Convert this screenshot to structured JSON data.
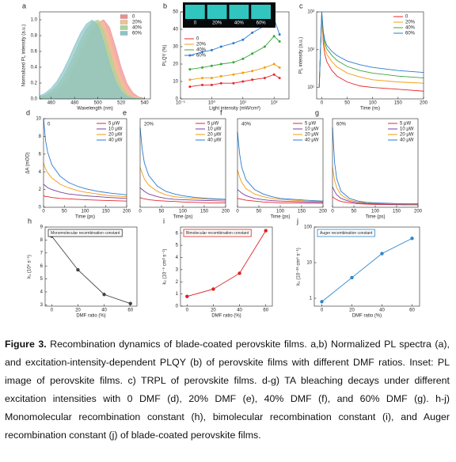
{
  "chart_data": [
    {
      "panel": "a",
      "type": "area",
      "xlabel": "Wavelength (nm)",
      "ylabel": "Normalized PL intensity (a.u.)",
      "xlim": [
        450,
        545
      ],
      "ylim": [
        0,
        1.1
      ],
      "xticks": [
        460,
        480,
        500,
        520,
        540
      ],
      "yticks": [
        {
          "value": 0,
          "label": "0.0"
        },
        0.2,
        0.4,
        0.6,
        0.8,
        {
          "value": 1,
          "label": "1.0"
        }
      ],
      "legend": "upper right",
      "x": [
        450,
        455,
        460,
        465,
        470,
        475,
        480,
        485,
        490,
        495,
        500,
        505,
        510,
        515,
        520,
        525,
        530,
        535,
        540
      ],
      "series": [
        {
          "name": "0",
          "color": "#f08c8c",
          "values": [
            0.009,
            0.021,
            0.044,
            0.085,
            0.151,
            0.249,
            0.381,
            0.539,
            0.707,
            0.857,
            0.962,
            1,
            0.902,
            0.662,
            0.395,
            0.192,
            0.076,
            0.024,
            0.006
          ]
        },
        {
          "name": "20%",
          "color": "#f4c08f",
          "values": [
            0.015,
            0.033,
            0.066,
            0.121,
            0.206,
            0.325,
            0.474,
            0.64,
            0.801,
            0.927,
            0.994,
            0.964,
            0.768,
            0.498,
            0.262,
            0.112,
            0.039,
            0.011,
            0.003
          ]
        },
        {
          "name": "40%",
          "color": "#a9d69a",
          "values": [
            0.025,
            0.05,
            0.096,
            0.168,
            0.273,
            0.411,
            0.573,
            0.739,
            0.882,
            0.975,
            0.996,
            0.862,
            0.607,
            0.347,
            0.162,
            0.061,
            0.019,
            0.005,
            0.001
          ]
        },
        {
          "name": "60%",
          "color": "#8cc3c7",
          "values": [
            0.038,
            0.075,
            0.135,
            0.227,
            0.353,
            0.506,
            0.674,
            0.83,
            0.946,
            0.998,
            0.936,
            0.716,
            0.445,
            0.225,
            0.093,
            0.031,
            0.008,
            0.002,
            0
          ]
        }
      ]
    },
    {
      "panel": "b",
      "type": "line",
      "markers": true,
      "xlog": true,
      "xlabel": "Light intensity (mW/cm²)",
      "ylabel": "PLQY (%)",
      "xlim": [
        0.1,
        300
      ],
      "ylim": [
        0,
        50
      ],
      "xticks": [
        {
          "value": 0.1,
          "label": "10⁻¹"
        },
        {
          "value": 1,
          "label": "10⁰"
        },
        {
          "value": 10,
          "label": "10¹"
        },
        {
          "value": 100,
          "label": "10²"
        }
      ],
      "yticks": [
        0,
        10,
        20,
        30,
        40,
        50
      ],
      "legend": "upper left",
      "inset_labels": [
        "0",
        "20%",
        "40%",
        "60%"
      ],
      "x": [
        0.2,
        0.5,
        1,
        2,
        5,
        10,
        20,
        50,
        100,
        150
      ],
      "series": [
        {
          "name": "0",
          "color": "#e8262b",
          "values": [
            7,
            8,
            8,
            9,
            9,
            10,
            11,
            12,
            14,
            12
          ]
        },
        {
          "name": "20%",
          "color": "#f39c12",
          "values": [
            11,
            12,
            12,
            13,
            14,
            15,
            16,
            18,
            20,
            18
          ]
        },
        {
          "name": "40%",
          "color": "#3aa53a",
          "values": [
            17,
            18,
            19,
            20,
            21,
            23,
            26,
            30,
            36,
            33
          ]
        },
        {
          "name": "60%",
          "color": "#2b7bd0",
          "values": [
            25,
            27,
            28,
            30,
            32,
            34,
            38,
            42,
            46,
            37
          ]
        }
      ]
    },
    {
      "panel": "c",
      "type": "line",
      "ylog": true,
      "xlabel": "Time (ns)",
      "ylabel": "PL intensity (a.u.)",
      "xlim": [
        -10,
        200
      ],
      "ylim": [
        5,
        1000
      ],
      "xticks": [
        0,
        50,
        100,
        150,
        200
      ],
      "yticks": [
        {
          "value": 10,
          "label": "10¹"
        },
        {
          "value": 100,
          "label": "10²"
        },
        {
          "value": 1000,
          "label": "10³"
        }
      ],
      "legend": "upper right",
      "x": [
        -5,
        0,
        3,
        6,
        10,
        20,
        30,
        50,
        75,
        100,
        150,
        200
      ],
      "series": [
        {
          "name": "0",
          "color": "#e8262b",
          "values": [
            10,
            850,
            150,
            75,
            48,
            28,
            20,
            14,
            11,
            10,
            9,
            8
          ]
        },
        {
          "name": "20%",
          "color": "#f39c12",
          "values": [
            10,
            900,
            200,
            110,
            75,
            48,
            35,
            24,
            19,
            16,
            14,
            13
          ]
        },
        {
          "name": "40%",
          "color": "#3aa53a",
          "values": [
            10,
            950,
            250,
            150,
            105,
            70,
            52,
            36,
            28,
            24,
            20,
            18
          ]
        },
        {
          "name": "60%",
          "color": "#2b7bd0",
          "values": [
            10,
            1000,
            300,
            180,
            130,
            90,
            70,
            50,
            40,
            34,
            28,
            25
          ]
        }
      ]
    },
    {
      "panel": "d",
      "tag": "0",
      "type": "line",
      "xlabel": "Time (ps)",
      "ylabel": "ΔA (mOD)",
      "xlim": [
        0,
        200
      ],
      "ylim": [
        0,
        10
      ],
      "xticks": [
        0,
        50,
        100,
        150,
        200
      ],
      "yticks": [
        0,
        2,
        4,
        6,
        8,
        10
      ],
      "legend": "upper right",
      "x": [
        0,
        5,
        10,
        20,
        40,
        60,
        80,
        100,
        130,
        160,
        200
      ],
      "series": [
        {
          "name": "5 μW",
          "color": "#e8262b",
          "values": [
            1.3,
            1.2,
            1.2,
            1.1,
            1,
            0.95,
            0.9,
            0.85,
            0.8,
            0.75,
            0.7
          ]
        },
        {
          "name": "10 μW",
          "color": "#7a3fa0",
          "values": [
            2.6,
            2.4,
            2.2,
            2,
            1.7,
            1.5,
            1.4,
            1.3,
            1.2,
            1.1,
            1
          ]
        },
        {
          "name": "20 μW",
          "color": "#f39c12",
          "values": [
            5,
            4.3,
            3.9,
            3.3,
            2.6,
            2.2,
            1.9,
            1.7,
            1.5,
            1.3,
            1.2
          ]
        },
        {
          "name": "40 μW",
          "color": "#2b7bd0",
          "values": [
            10,
            7.5,
            6.2,
            4.8,
            3.5,
            2.8,
            2.4,
            2.1,
            1.8,
            1.6,
            1.4
          ]
        }
      ]
    },
    {
      "panel": "e",
      "tag": "20%",
      "type": "line",
      "xlabel": "Time (ps)",
      "xlim": [
        0,
        200
      ],
      "ylim": [
        0,
        10
      ],
      "xticks": [
        0,
        50,
        100,
        150,
        200
      ],
      "legend": "upper right",
      "x": [
        0,
        5,
        10,
        20,
        40,
        60,
        80,
        100,
        130,
        160,
        200
      ],
      "series": [
        {
          "name": "5 μW",
          "color": "#e8262b",
          "values": [
            1.1,
            1,
            0.95,
            0.85,
            0.75,
            0.7,
            0.65,
            0.6,
            0.55,
            0.5,
            0.5
          ]
        },
        {
          "name": "10 μW",
          "color": "#7a3fa0",
          "values": [
            2.2,
            2,
            1.8,
            1.5,
            1.2,
            1,
            0.9,
            0.85,
            0.8,
            0.75,
            0.7
          ]
        },
        {
          "name": "20 μW",
          "color": "#f39c12",
          "values": [
            4.5,
            3.8,
            3.2,
            2.5,
            1.8,
            1.4,
            1.2,
            1.1,
            1,
            0.9,
            0.85
          ]
        },
        {
          "name": "40 μW",
          "color": "#2b7bd0",
          "values": [
            9,
            6.5,
            5,
            3.6,
            2.4,
            1.8,
            1.5,
            1.3,
            1.1,
            1,
            0.9
          ]
        }
      ]
    },
    {
      "panel": "f",
      "tag": "40%",
      "type": "line",
      "xlabel": "Time (ps)",
      "xlim": [
        0,
        200
      ],
      "ylim": [
        0,
        10
      ],
      "xticks": [
        0,
        50,
        100,
        150,
        200
      ],
      "legend": "upper right",
      "x": [
        0,
        5,
        10,
        20,
        40,
        60,
        80,
        100,
        130,
        160,
        200
      ],
      "series": [
        {
          "name": "5 μW",
          "color": "#e8262b",
          "values": [
            1,
            0.95,
            0.9,
            0.8,
            0.7,
            0.6,
            0.55,
            0.5,
            0.5,
            0.45,
            0.45
          ]
        },
        {
          "name": "10 μW",
          "color": "#7a3fa0",
          "values": [
            2,
            1.8,
            1.6,
            1.3,
            1,
            0.85,
            0.75,
            0.7,
            0.65,
            0.6,
            0.55
          ]
        },
        {
          "name": "20 μW",
          "color": "#f39c12",
          "values": [
            4.2,
            3.4,
            2.8,
            2.1,
            1.5,
            1.2,
            1,
            0.9,
            0.8,
            0.7,
            0.65
          ]
        },
        {
          "name": "40 μW",
          "color": "#2b7bd0",
          "values": [
            8.5,
            6,
            4.5,
            3.1,
            2,
            1.5,
            1.2,
            1,
            0.9,
            0.8,
            0.7
          ]
        }
      ]
    },
    {
      "panel": "g",
      "tag": "60%",
      "type": "line",
      "xlabel": "Time (ps)",
      "xlim": [
        0,
        200
      ],
      "ylim": [
        0,
        10
      ],
      "xticks": [
        0,
        50,
        100,
        150,
        200
      ],
      "legend": "upper right",
      "x": [
        0,
        5,
        10,
        20,
        40,
        60,
        80,
        100,
        130,
        160,
        200
      ],
      "series": [
        {
          "name": "5 μW",
          "color": "#e8262b",
          "values": [
            1.2,
            1,
            0.85,
            0.65,
            0.5,
            0.4,
            0.35,
            0.32,
            0.3,
            0.28,
            0.27
          ]
        },
        {
          "name": "10 μW",
          "color": "#7a3fa0",
          "values": [
            2.3,
            1.8,
            1.4,
            1,
            0.65,
            0.5,
            0.42,
            0.38,
            0.35,
            0.32,
            0.3
          ]
        },
        {
          "name": "20 μW",
          "color": "#f39c12",
          "values": [
            4.5,
            3,
            2.2,
            1.4,
            0.8,
            0.6,
            0.5,
            0.45,
            0.4,
            0.38,
            0.35
          ]
        },
        {
          "name": "40 μW",
          "color": "#2b7bd0",
          "values": [
            9,
            5,
            3.2,
            1.8,
            1,
            0.7,
            0.55,
            0.5,
            0.45,
            0.4,
            0.4
          ]
        }
      ]
    },
    {
      "panel": "h",
      "type": "line",
      "markers": true,
      "box_title": "Monomolecular recombination constant",
      "box_color": "#333333",
      "xlabel": "DMF ratio (%)",
      "ylabel": "k₁ (10⁶ s⁻¹)",
      "xlim": [
        -5,
        65
      ],
      "ylim": [
        2.9,
        9
      ],
      "xticks": [
        0,
        20,
        40,
        60
      ],
      "yticks": [
        3,
        4,
        5,
        6,
        7,
        8,
        9
      ],
      "x": [
        0,
        20,
        40,
        60
      ],
      "series": [
        {
          "color": "#444444",
          "values": [
            8.3,
            5.7,
            3.8,
            3.1
          ]
        }
      ]
    },
    {
      "panel": "i",
      "type": "line",
      "markers": true,
      "box_title": "Bimolecular recombination constant",
      "box_color": "#e02020",
      "xlabel": "DMF ratio (%)",
      "ylabel": "k₂ (10⁻⁹ cm³ s⁻¹)",
      "xlim": [
        -5,
        65
      ],
      "ylim": [
        0,
        6.5
      ],
      "xticks": [
        0,
        20,
        40,
        60
      ],
      "yticks": [
        0,
        1,
        2,
        3,
        4,
        5,
        6
      ],
      "x": [
        0,
        20,
        40,
        60
      ],
      "series": [
        {
          "color": "#e02020",
          "values": [
            0.8,
            1.4,
            2.7,
            6.2
          ]
        }
      ]
    },
    {
      "panel": "j",
      "type": "line",
      "markers": true,
      "ylog": true,
      "box_title": "Auger recombination constant",
      "box_color": "#2e86c8",
      "xlabel": "DMF ratio (%)",
      "ylabel": "k₃ (10⁻²⁸ cm⁶ s⁻¹)",
      "xlim": [
        -5,
        65
      ],
      "ylim": [
        0.6,
        100
      ],
      "xticks": [
        0,
        20,
        40,
        60
      ],
      "yticks": [
        1,
        10,
        100
      ],
      "x": [
        0,
        20,
        40,
        60
      ],
      "series": [
        {
          "color": "#2e86c8",
          "values": [
            0.8,
            3.8,
            18,
            48
          ]
        }
      ]
    }
  ],
  "caption": {
    "label": "Figure 3.",
    "text": "Recombination dynamics of blade-coated perovskite films. a,b) Normalized PL spectra (a), and excitation-intensity-dependent PLQY (b) of perovskite films with different DMF ratios. Inset: PL image of perovskite films. c) TRPL of perovskite films. d-g) TA bleaching decays under different excitation intensities with 0 DMF (d), 20% DMF (e), 40% DMF (f), and 60% DMF (g). h-j) Monomolecular recombination constant (h), bimolecular recombination constant (i), and Auger recombination constant (j) of blade-coated perovskite films."
  }
}
